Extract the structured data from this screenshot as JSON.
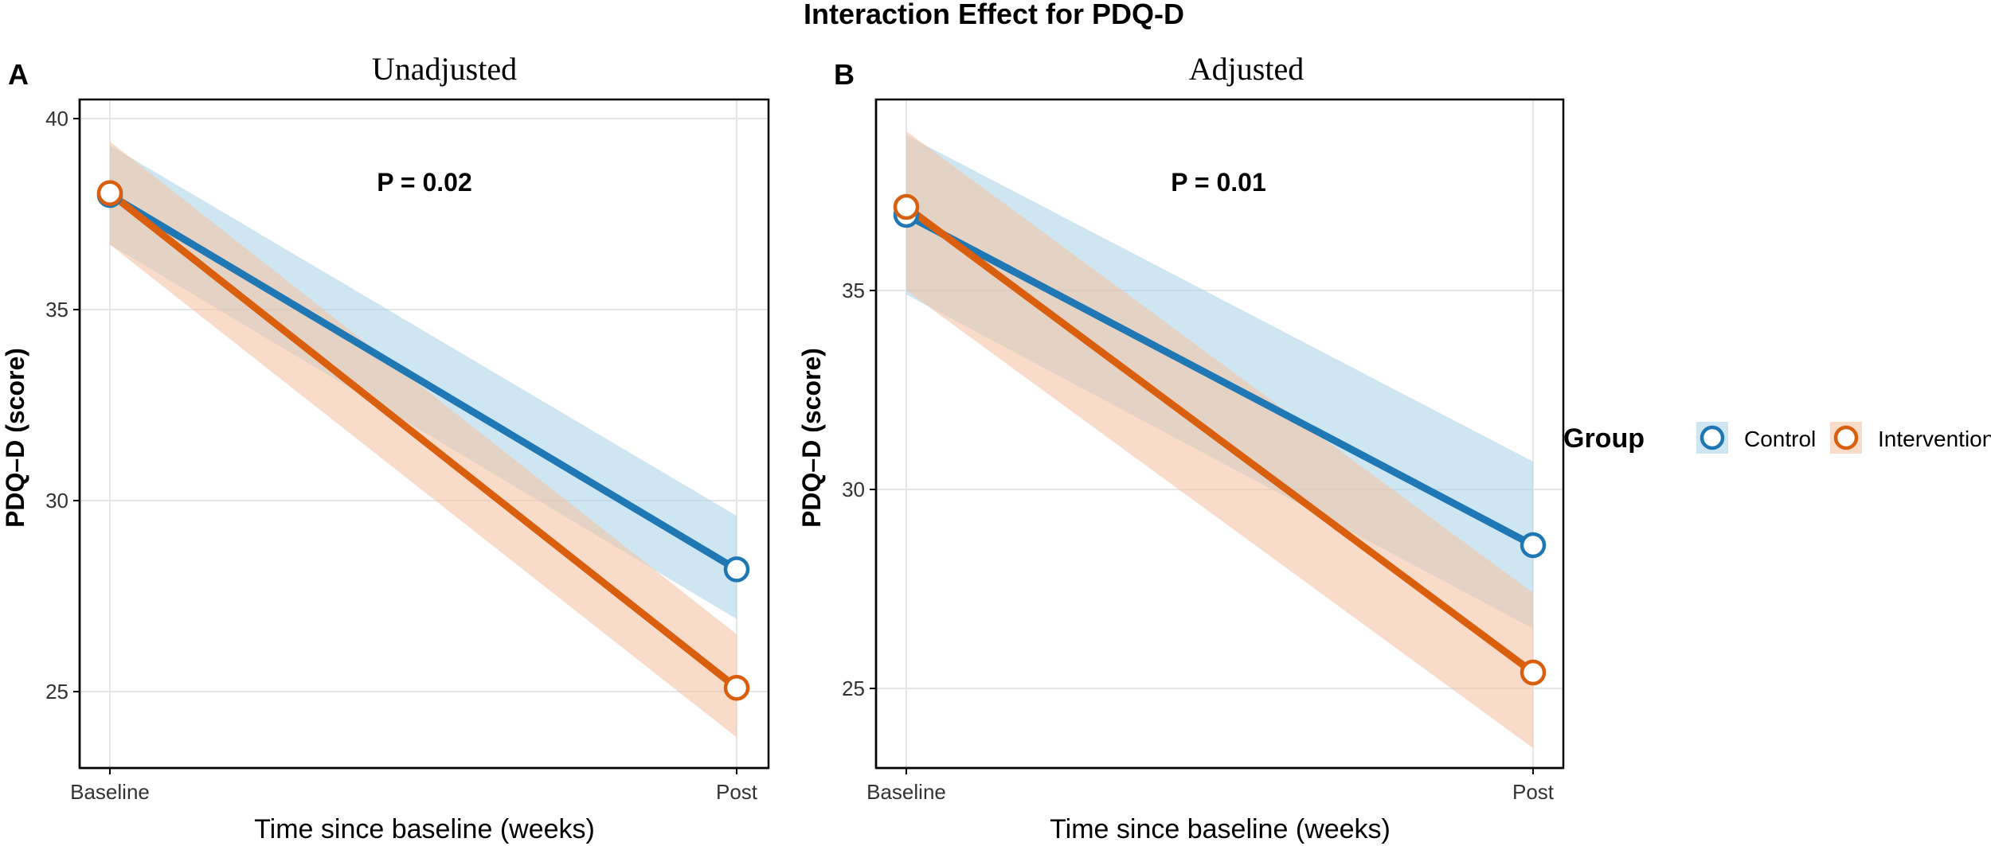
{
  "figure": {
    "title": "Interaction Effect for PDQ-D"
  },
  "legend": {
    "title": "Group",
    "entries": [
      "Control",
      "Intervention"
    ]
  },
  "colors": {
    "control": "#1f77b4",
    "intervention": "#d95f0e",
    "control_band": "#a6cfe8",
    "intervention_band": "#f4c5a5",
    "grid": "#e6e6e6",
    "axis": "#000000"
  },
  "chart_data": [
    {
      "type": "line",
      "panel_label": "A",
      "title": "Unadjusted",
      "annotation": "P = 0.02",
      "xlabel": "Time since baseline (weeks)",
      "ylabel": "PDQ–D (score)",
      "categories": [
        "Baseline",
        "Post"
      ],
      "ylim": [
        23.0,
        40.5
      ],
      "yticks": [
        25,
        30,
        35,
        40
      ],
      "series": [
        {
          "name": "Control",
          "values": [
            38.0,
            28.2
          ],
          "lower": [
            36.7,
            26.9
          ],
          "upper": [
            39.3,
            29.6
          ]
        },
        {
          "name": "Intervention",
          "values": [
            38.05,
            25.1
          ],
          "lower": [
            36.7,
            23.8
          ],
          "upper": [
            39.4,
            26.5
          ]
        }
      ]
    },
    {
      "type": "line",
      "panel_label": "B",
      "title": "Adjusted",
      "annotation": "P = 0.01",
      "xlabel": "Time since baseline (weeks)",
      "ylabel": "PDQ–D (score)",
      "categories": [
        "Baseline",
        "Post"
      ],
      "ylim": [
        23.0,
        39.8
      ],
      "yticks": [
        25,
        30,
        35
      ],
      "series": [
        {
          "name": "Control",
          "values": [
            36.9,
            28.6
          ],
          "lower": [
            34.9,
            26.5
          ],
          "upper": [
            38.9,
            30.7
          ]
        },
        {
          "name": "Intervention",
          "values": [
            37.1,
            25.4
          ],
          "lower": [
            35.0,
            23.5
          ],
          "upper": [
            39.0,
            27.4
          ]
        }
      ]
    }
  ]
}
